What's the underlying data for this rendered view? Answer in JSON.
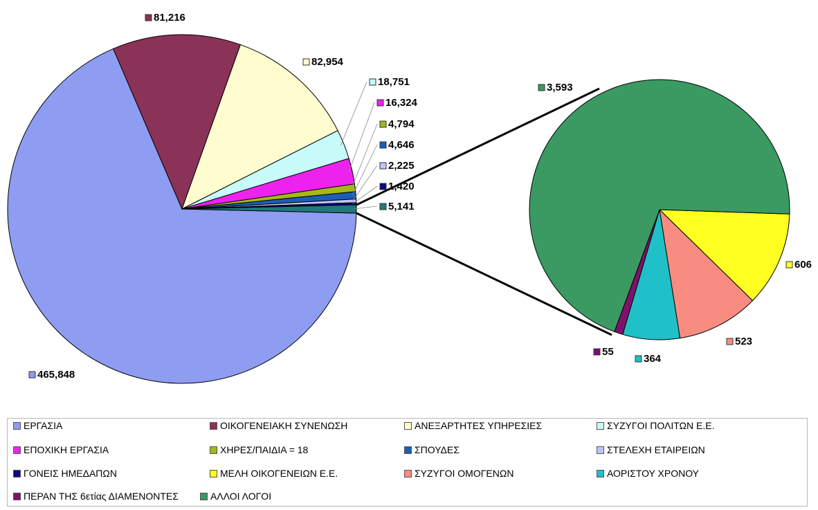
{
  "chart_data": {
    "type": "pie",
    "main_pie": {
      "slices": [
        {
          "key": "ergasia",
          "value": 465848,
          "label": "465,848",
          "color": "#8e9cf2"
        },
        {
          "key": "oikogeneiaki",
          "value": 81216,
          "label": "81,216",
          "color": "#8b3258"
        },
        {
          "key": "anexartites",
          "value": 82954,
          "label": "82,954",
          "color": "#fffdd0"
        },
        {
          "key": "syzygoi_politon",
          "value": 18751,
          "label": "18,751",
          "color": "#c8fafa"
        },
        {
          "key": "epochiki",
          "value": 16324,
          "label": "16,324",
          "color": "#ee22ee"
        },
        {
          "key": "chires",
          "value": 4794,
          "label": "4,794",
          "color": "#a6b81a"
        },
        {
          "key": "spoudes",
          "value": 4646,
          "label": "4,646",
          "color": "#1a5fb4"
        },
        {
          "key": "stelechi",
          "value": 2225,
          "label": "2,225",
          "color": "#c0c4f8"
        },
        {
          "key": "goneis",
          "value": 1420,
          "label": "1,420",
          "color": "#0a0a82"
        },
        {
          "key": "group_other",
          "value": 5141,
          "label": "5,141",
          "color": "#1f7a7a"
        }
      ]
    },
    "secondary_pie": {
      "slices": [
        {
          "key": "alloi_logoi",
          "value": 3593,
          "label": "3,593",
          "color": "#3a9a62"
        },
        {
          "key": "meli",
          "value": 606,
          "label": "606",
          "color": "#ffff22"
        },
        {
          "key": "syzygoi_omogenon",
          "value": 523,
          "label": "523",
          "color": "#f88c80"
        },
        {
          "key": "aoristou",
          "value": 364,
          "label": "364",
          "color": "#1fc0c8"
        },
        {
          "key": "peran",
          "value": 55,
          "label": "55",
          "color": "#80106e"
        }
      ]
    },
    "legend": [
      {
        "label": "ΕΡΓΑΣΙΑ",
        "color": "#8e9cf2"
      },
      {
        "label": "ΟΙΚΟΓΕΝΕΙΑΚΗ ΣΥΝΕΝΩΣΗ",
        "color": "#8b3258"
      },
      {
        "label": "ΑΝΕΞΑΡΤΗΤΕΣ ΥΠΗΡΕΣΙΕΣ",
        "color": "#fffdd0"
      },
      {
        "label": "ΣΥΖΥΓΟΙ ΠΟΛΙΤΩΝ Ε.Ε.",
        "color": "#c8fafa"
      },
      {
        "label": "ΕΠΟΧΙΚΗ ΕΡΓΑΣΙΑ",
        "color": "#ee22ee"
      },
      {
        "label": "ΧΗΡΕΣ/ΠΑΙΔΙΑ = 18",
        "color": "#a6b81a"
      },
      {
        "label": "ΣΠΟΥΔΕΣ",
        "color": "#1a5fb4"
      },
      {
        "label": "ΣΤΕΛΕΧΗ ΕΤΑΙΡΕΙΩΝ",
        "color": "#c0c4f8"
      },
      {
        "label": "ΓΟΝΕΙΣ ΗΜΕΔΑΠΩΝ",
        "color": "#0a0a82"
      },
      {
        "label": "ΜΕΛΗ ΟΙΚΟΓΕΝΕΙΩΝ Ε.Ε.",
        "color": "#ffff22"
      },
      {
        "label": "ΣΥΖΥΓΟΙ ΟΜΟΓΕΝΩΝ",
        "color": "#f88c80"
      },
      {
        "label": "ΑΟΡΙΣΤΟΥ ΧΡΟΝΟΥ",
        "color": "#1fc0c8"
      },
      {
        "label": "ΠΕΡΑΝ ΤΗΣ 6ετίας ΔΙΑΜΕΝΟΝΤΕΣ",
        "color": "#80106e"
      },
      {
        "label": "ΑΛΛΟΙ ΛΟΓΟΙ",
        "color": "#3a9a62"
      }
    ],
    "legend_placement": "bottom"
  }
}
